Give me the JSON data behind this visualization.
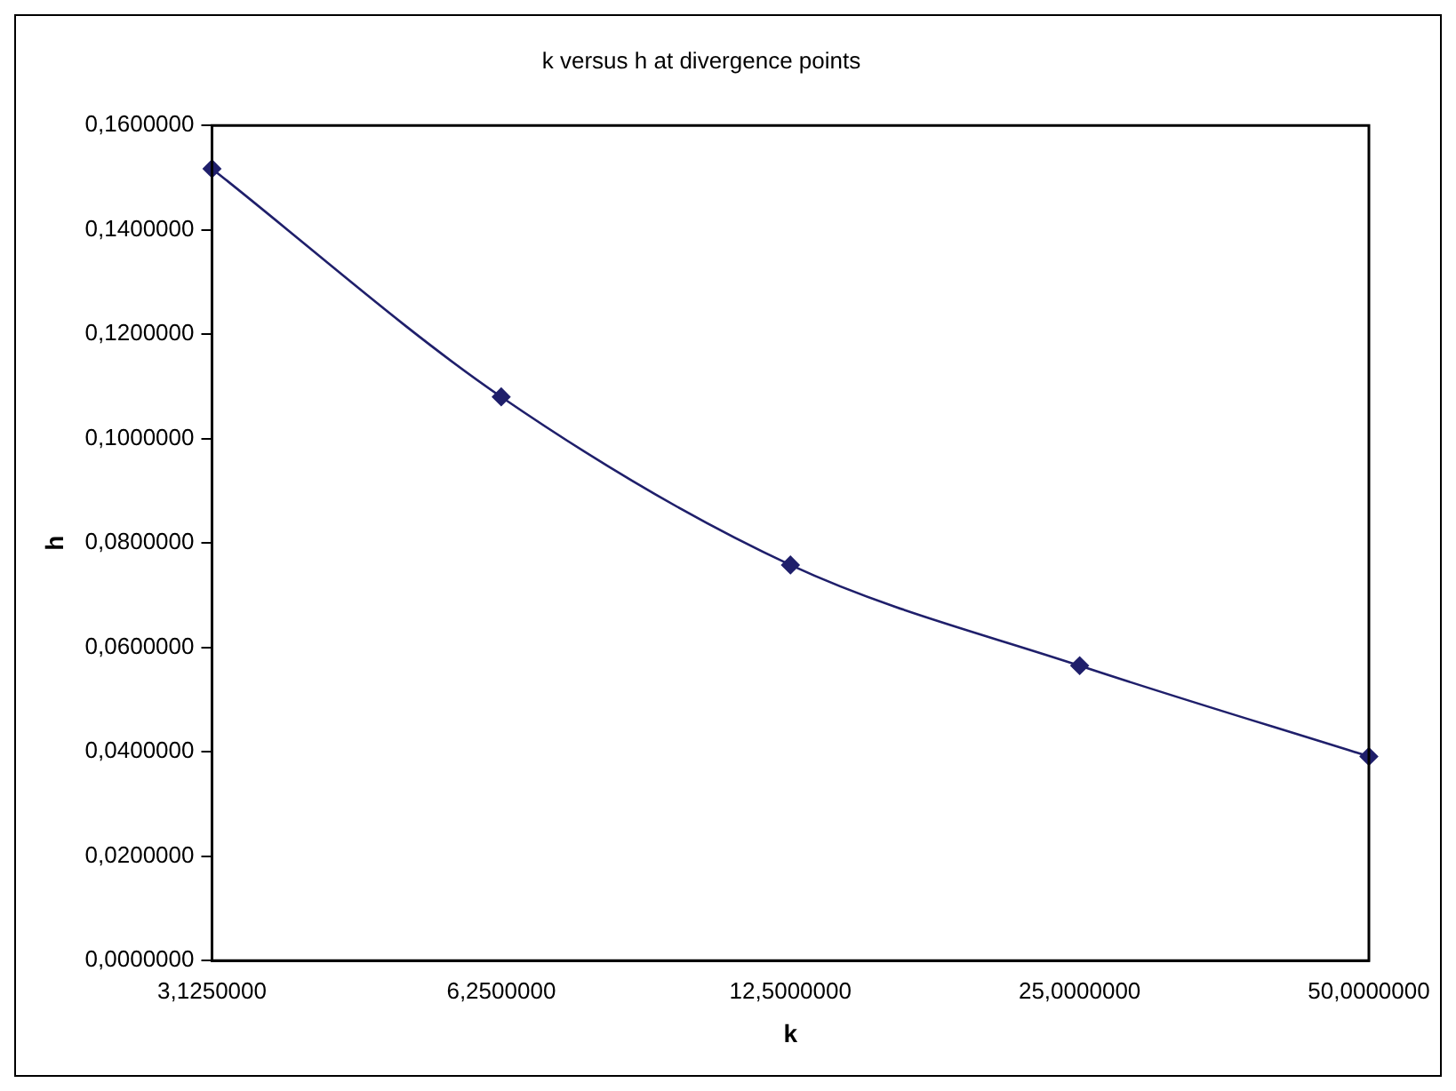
{
  "chart_data": {
    "type": "line",
    "title": "k versus h at divergence points",
    "xlabel": "k",
    "ylabel": "h",
    "categories": [
      "3,1250000",
      "6,2500000",
      "12,5000000",
      "25,0000000",
      "50,0000000"
    ],
    "series": [
      {
        "color": "#1f1f6b",
        "values": [
          0.1517,
          0.108,
          0.0758,
          0.0565,
          0.0391
        ]
      }
    ],
    "ylim": [
      0,
      0.16
    ],
    "yticks": [
      {
        "value": 0,
        "label": "0,0000000"
      },
      {
        "value": 0.02,
        "label": "0,0200000"
      },
      {
        "value": 0.04,
        "label": "0,0400000"
      },
      {
        "value": 0.06,
        "label": "0,0600000"
      },
      {
        "value": 0.08,
        "label": "0,0800000"
      },
      {
        "value": 0.1,
        "label": "0,1000000"
      },
      {
        "value": 0.12,
        "label": "0,1200000"
      },
      {
        "value": 0.14,
        "label": "0,1400000"
      },
      {
        "value": 0.16,
        "label": "0,1600000"
      }
    ],
    "grid": false,
    "legend": false,
    "marker": "diamond",
    "line_style": "solid"
  }
}
